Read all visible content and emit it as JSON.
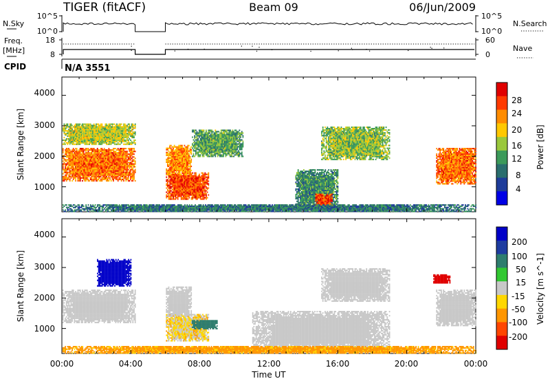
{
  "header": {
    "radar": "TIGER (fitACF)",
    "beam": "Beam 09",
    "date": "06/Jun/2009"
  },
  "top_panels": {
    "nsky_label": "N.Sky",
    "nsky_ticks": [
      "10^5",
      "10^0"
    ],
    "nsearch_label": "N.Search",
    "nsearch_ticks": [
      "10^5",
      "10^0"
    ],
    "freq_label_1": "Freq.",
    "freq_label_2": "[MHz]",
    "freq_ticks": [
      "18",
      "8"
    ],
    "nave_label": "Nave",
    "nave_ticks": [
      "60",
      "0"
    ],
    "cpid_label": "CPID",
    "cpid_value": "N/A 3551"
  },
  "axes": {
    "ylabel": "Slant Range [km]",
    "yticks": [
      "4000",
      "3000",
      "2000",
      "1000"
    ],
    "xticks": [
      "00:00",
      "04:00",
      "08:00",
      "12:00",
      "16:00",
      "20:00",
      "00:00"
    ],
    "xlabel": "Time UT"
  },
  "power_colorbar": {
    "label": "Power [dB]",
    "ticks": [
      "28",
      "24",
      "20",
      "16",
      "12",
      "8",
      "4"
    ],
    "colors": [
      "#e00000",
      "#ff3a00",
      "#ff8c00",
      "#ffc800",
      "#9ac83c",
      "#3c9a5a",
      "#2a6e6e",
      "#1e3c9a",
      "#0000e6"
    ]
  },
  "velocity_colorbar": {
    "label": "Velocity [m s^-1]",
    "ticks": [
      "200",
      "100",
      "50",
      "15",
      "-15",
      "-50",
      "-100",
      "-200"
    ],
    "colors": [
      "#0000c8",
      "#1e3ca0",
      "#2e7d6e",
      "#32c832",
      "#c8c8c8",
      "#ffd700",
      "#ff9600",
      "#ff4600",
      "#e00000"
    ]
  },
  "chart_data": [
    {
      "type": "heatmap",
      "title": "",
      "xlabel": "Time UT",
      "ylabel": "Slant Range [km]",
      "xlim": [
        "00:00",
        "24:00"
      ],
      "ylim": [
        180,
        4600
      ],
      "colorbar_label": "Power [dB]",
      "colorbar_range": [
        0,
        30
      ],
      "data_gaps": [
        [
          "04:15",
          "06:00"
        ]
      ],
      "regions": [
        {
          "t": [
            "00:00",
            "04:15"
          ],
          "range_km": [
            1200,
            2300
          ],
          "power_db": 24
        },
        {
          "t": [
            "00:00",
            "04:15"
          ],
          "range_km": [
            2400,
            3100
          ],
          "power_db": 16
        },
        {
          "t": [
            "06:00",
            "08:30"
          ],
          "range_km": [
            600,
            1500
          ],
          "power_db": 26
        },
        {
          "t": [
            "06:00",
            "07:30"
          ],
          "range_km": [
            1400,
            2400
          ],
          "power_db": 22
        },
        {
          "t": [
            "07:30",
            "10:30"
          ],
          "range_km": [
            2000,
            2900
          ],
          "power_db": 12
        },
        {
          "t": [
            "13:30",
            "16:00"
          ],
          "range_km": [
            300,
            1600
          ],
          "power_db": 10
        },
        {
          "t": [
            "14:40",
            "15:40"
          ],
          "range_km": [
            350,
            800
          ],
          "power_db": 26
        },
        {
          "t": [
            "15:00",
            "19:00"
          ],
          "range_km": [
            1900,
            3000
          ],
          "power_db": 14
        },
        {
          "t": [
            "21:40",
            "24:00"
          ],
          "range_km": [
            1100,
            2300
          ],
          "power_db": 24
        },
        {
          "t": [
            "00:00",
            "24:00"
          ],
          "range_km": [
            200,
            450
          ],
          "power_db": 8
        }
      ]
    },
    {
      "type": "heatmap",
      "title": "",
      "xlabel": "Time UT",
      "ylabel": "Slant Range [km]",
      "xlim": [
        "00:00",
        "24:00"
      ],
      "ylim": [
        180,
        4600
      ],
      "colorbar_label": "Velocity [m s^-1]",
      "colorbar_range": [
        -250,
        250
      ],
      "data_gaps": [
        [
          "04:15",
          "06:00"
        ]
      ],
      "regions": [
        {
          "t": [
            "00:00",
            "04:15"
          ],
          "range_km": [
            1200,
            2300
          ],
          "velocity": 0
        },
        {
          "t": [
            "02:00",
            "04:00"
          ],
          "range_km": [
            2400,
            3300
          ],
          "velocity": 220
        },
        {
          "t": [
            "06:00",
            "08:30"
          ],
          "range_km": [
            600,
            1500
          ],
          "velocity": -20
        },
        {
          "t": [
            "07:30",
            "09:00"
          ],
          "range_km": [
            1000,
            1300
          ],
          "velocity": 60
        },
        {
          "t": [
            "06:00",
            "07:30"
          ],
          "range_km": [
            1400,
            2400
          ],
          "velocity": 0
        },
        {
          "t": [
            "11:00",
            "19:00"
          ],
          "range_km": [
            300,
            1600
          ],
          "velocity": 0
        },
        {
          "t": [
            "15:00",
            "19:00"
          ],
          "range_km": [
            1900,
            3000
          ],
          "velocity": 0
        },
        {
          "t": [
            "21:40",
            "24:00"
          ],
          "range_km": [
            1100,
            2300
          ],
          "velocity": 0
        },
        {
          "t": [
            "21:30",
            "22:30"
          ],
          "range_km": [
            2500,
            2800
          ],
          "velocity": -200
        },
        {
          "t": [
            "00:00",
            "24:00"
          ],
          "range_km": [
            200,
            450
          ],
          "velocity": -40
        }
      ]
    }
  ]
}
